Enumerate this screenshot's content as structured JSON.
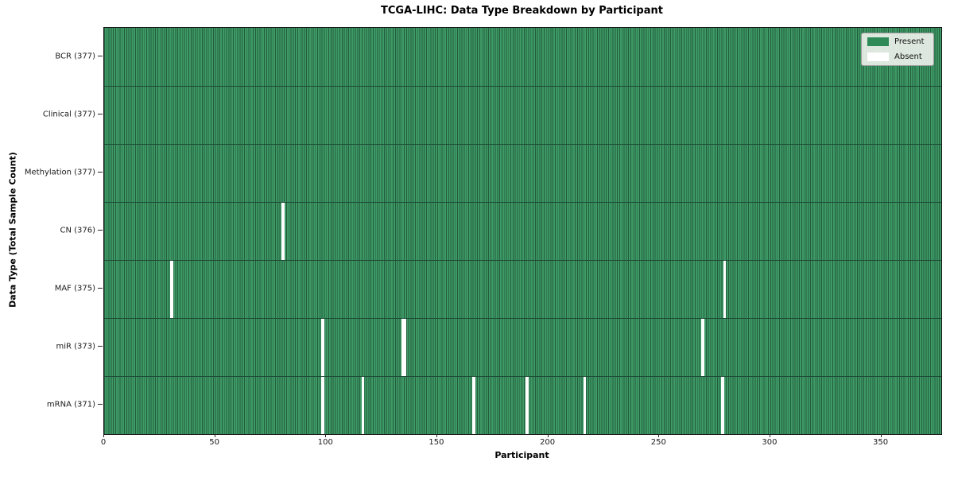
{
  "chart_data": {
    "type": "heatmap",
    "title": "TCGA-LIHC: Data Type Breakdown by Participant",
    "xlabel": "Participant",
    "ylabel": "Data Type (Total Sample Count)",
    "x_ticks": [
      0,
      50,
      100,
      150,
      200,
      250,
      300,
      350
    ],
    "xlim": [
      0,
      377
    ],
    "n_participants": 377,
    "grid": false,
    "legend_position": "upper right",
    "legend": [
      {
        "label": "Present",
        "color": "#2e8b57"
      },
      {
        "label": "Absent",
        "color": "#ffffff"
      }
    ],
    "rows": [
      {
        "label": "BCR (377)",
        "data_type": "BCR",
        "present_count": 377,
        "absent_participants": []
      },
      {
        "label": "Clinical (377)",
        "data_type": "Clinical",
        "present_count": 377,
        "absent_participants": []
      },
      {
        "label": "Methylation (377)",
        "data_type": "Methylation",
        "present_count": 377,
        "absent_participants": []
      },
      {
        "label": "CN (376)",
        "data_type": "CN",
        "present_count": 376,
        "absent_participants": [
          80
        ]
      },
      {
        "label": "MAF (375)",
        "data_type": "MAF",
        "present_count": 375,
        "absent_participants": [
          30,
          279
        ]
      },
      {
        "label": "miR (373)",
        "data_type": "miR",
        "present_count": 373,
        "absent_participants": [
          98,
          134,
          135,
          269
        ]
      },
      {
        "label": "mRNA (371)",
        "data_type": "mRNA",
        "present_count": 371,
        "absent_participants": [
          98,
          116,
          166,
          190,
          216,
          278
        ]
      }
    ],
    "colors": {
      "present": "#2e8b57",
      "present_stripe_light": "#3e9a65",
      "cell_border_dark": "#235c3e",
      "row_separator": "#1d4834",
      "absent": "#ffffff",
      "plot_border": "#141414"
    }
  }
}
